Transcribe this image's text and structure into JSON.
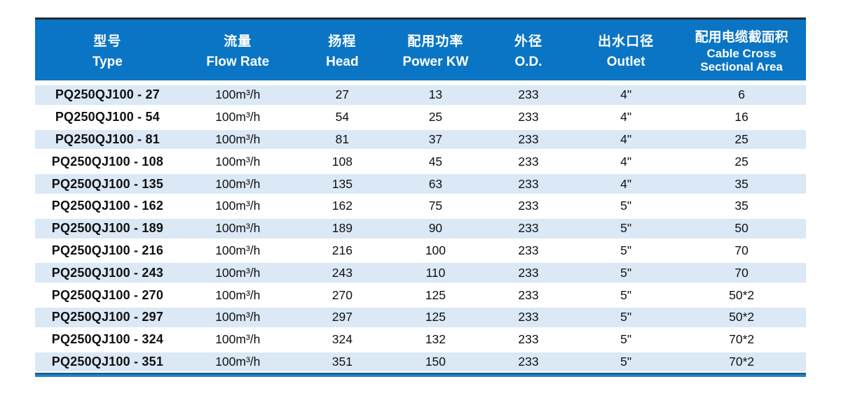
{
  "colors": {
    "header_bg": "#0a75c4",
    "header_text": "#ffffff",
    "stripe_bg": "#dbe8f5",
    "top_strip": "#25292e",
    "bottom_bar": "#1e84ce",
    "bottom_bar_top": "#1b5d90",
    "body_text": "#111111",
    "page_bg": "#ffffff"
  },
  "table": {
    "columns": [
      {
        "zh": "型号",
        "en": "Type"
      },
      {
        "zh": "流量",
        "en": "Flow Rate"
      },
      {
        "zh": "扬程",
        "en": "Head"
      },
      {
        "zh": "配用功率",
        "en": "Power KW"
      },
      {
        "zh": "外径",
        "en": "O.D."
      },
      {
        "zh": "出水口径",
        "en": "Outlet"
      },
      {
        "zh": "配用电缆截面积",
        "en": "Cable Cross",
        "en_line2": "Sectional Area"
      }
    ],
    "rows": [
      [
        "PQ250QJ100 - 27",
        "100m³/h",
        "27",
        "13",
        "233",
        "4\"",
        "6"
      ],
      [
        "PQ250QJ100 - 54",
        "100m³/h",
        "54",
        "25",
        "233",
        "4\"",
        "16"
      ],
      [
        "PQ250QJ100 - 81",
        "100m³/h",
        "81",
        "37",
        "233",
        "4\"",
        "25"
      ],
      [
        "PQ250QJ100 - 108",
        "100m³/h",
        "108",
        "45",
        "233",
        "4\"",
        "25"
      ],
      [
        "PQ250QJ100 - 135",
        "100m³/h",
        "135",
        "63",
        "233",
        "4\"",
        "35"
      ],
      [
        "PQ250QJ100 - 162",
        "100m³/h",
        "162",
        "75",
        "233",
        "5\"",
        "35"
      ],
      [
        "PQ250QJ100 - 189",
        "100m³/h",
        "189",
        "90",
        "233",
        "5\"",
        "50"
      ],
      [
        "PQ250QJ100 - 216",
        "100m³/h",
        "216",
        "100",
        "233",
        "5\"",
        "70"
      ],
      [
        "PQ250QJ100 - 243",
        "100m³/h",
        "243",
        "110",
        "233",
        "5\"",
        "70"
      ],
      [
        "PQ250QJ100 - 270",
        "100m³/h",
        "270",
        "125",
        "233",
        "5\"",
        "50*2"
      ],
      [
        "PQ250QJ100 - 297",
        "100m³/h",
        "297",
        "125",
        "233",
        "5\"",
        "50*2"
      ],
      [
        "PQ250QJ100 - 324",
        "100m³/h",
        "324",
        "132",
        "233",
        "5\"",
        "70*2"
      ],
      [
        "PQ250QJ100 - 351",
        "100m³/h",
        "351",
        "150",
        "233",
        "5\"",
        "70*2"
      ]
    ]
  }
}
